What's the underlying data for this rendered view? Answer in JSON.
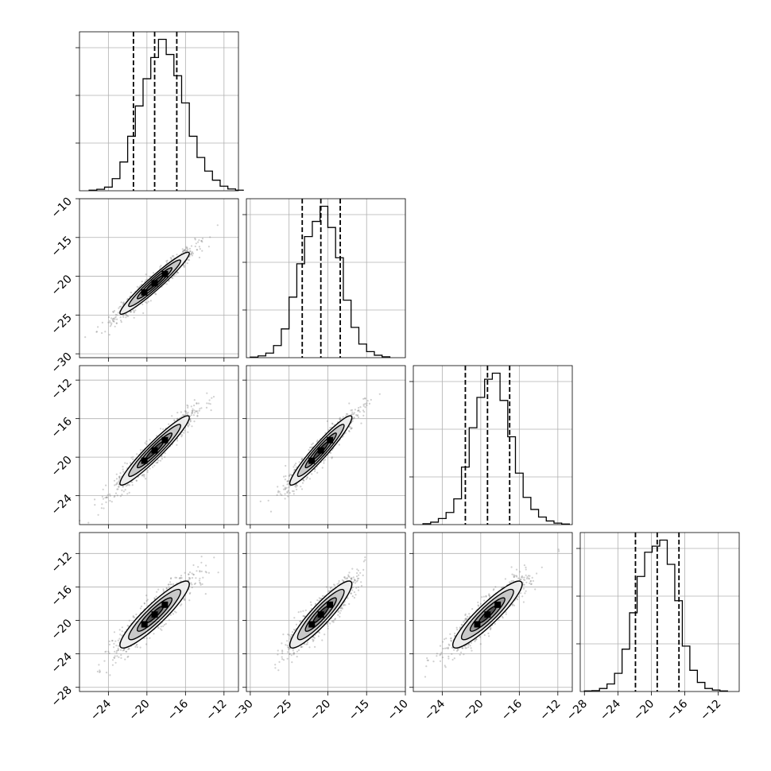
{
  "chart_data": {
    "type": "corner",
    "title": "",
    "parameters": [
      "",
      "",
      "",
      ""
    ],
    "ranges": [
      {
        "min": -27.0,
        "max": -10.5,
        "xticks": [
          -24,
          -20,
          -16,
          -12
        ]
      },
      {
        "min": -30.5,
        "max": -10.0,
        "xticks": [
          -30,
          -25,
          -20,
          -15,
          -10
        ],
        "yticks": [
          -10,
          -15,
          -20,
          -25,
          -30
        ]
      },
      {
        "min": -27.0,
        "max": -10.5,
        "xticks": [
          -24,
          -20,
          -16,
          -12
        ],
        "yticks": [
          -12,
          -16,
          -20,
          -24
        ]
      },
      {
        "min": -28.5,
        "max": -9.5,
        "xticks": [
          -28,
          -24,
          -20,
          -16,
          -12
        ],
        "yticks": [
          -12,
          -16,
          -20,
          -24,
          -28
        ]
      }
    ],
    "grid": true,
    "histograms": [
      {
        "param": 0,
        "bins_edges_start": -26.0,
        "bin_width": 0.8,
        "counts": [
          2,
          5,
          12,
          40,
          95,
          180,
          280,
          370,
          440,
          500,
          450,
          380,
          290,
          180,
          110,
          65,
          35,
          15,
          6,
          2
        ],
        "quantiles": [
          -21.4,
          -19.2,
          -16.9
        ]
      },
      {
        "param": 1,
        "bins_edges_start": -30.0,
        "bin_width": 1.0,
        "counts": [
          2,
          6,
          15,
          40,
          95,
          200,
          310,
          400,
          450,
          500,
          430,
          330,
          190,
          100,
          45,
          20,
          8,
          3
        ],
        "quantiles": [
          -23.3,
          -20.9,
          -18.4
        ]
      },
      {
        "param": 2,
        "bins_edges_start": -26.0,
        "bin_width": 0.8,
        "counts": [
          3,
          8,
          20,
          40,
          85,
          190,
          320,
          420,
          480,
          500,
          410,
          290,
          170,
          90,
          50,
          25,
          12,
          5,
          2
        ],
        "quantiles": [
          -21.6,
          -19.3,
          -17.0
        ]
      },
      {
        "param": 3,
        "bins_edges_start": -28.0,
        "bin_width": 0.9,
        "counts": [
          2,
          3,
          10,
          25,
          60,
          140,
          260,
          380,
          460,
          480,
          500,
          420,
          300,
          150,
          70,
          30,
          10,
          5,
          2
        ],
        "quantiles": [
          -21.9,
          -19.3,
          -16.7
        ]
      }
    ],
    "pairs": [
      {
        "x": 0,
        "y": 1,
        "mean": [
          -19.2,
          -20.9
        ],
        "sigma": [
          1.8,
          2.0
        ],
        "rho": 0.96
      },
      {
        "x": 0,
        "y": 2,
        "mean": [
          -19.2,
          -19.3
        ],
        "sigma": [
          1.8,
          1.8
        ],
        "rho": 0.95
      },
      {
        "x": 1,
        "y": 2,
        "mean": [
          -20.9,
          -19.3
        ],
        "sigma": [
          2.0,
          1.8
        ],
        "rho": 0.95
      },
      {
        "x": 0,
        "y": 3,
        "mean": [
          -19.2,
          -19.3
        ],
        "sigma": [
          1.8,
          2.0
        ],
        "rho": 0.91
      },
      {
        "x": 1,
        "y": 3,
        "mean": [
          -20.9,
          -19.3
        ],
        "sigma": [
          2.0,
          2.0
        ],
        "rho": 0.91
      },
      {
        "x": 2,
        "y": 3,
        "mean": [
          -19.3,
          -19.3
        ],
        "sigma": [
          1.8,
          2.0
        ],
        "rho": 0.91
      }
    ]
  }
}
